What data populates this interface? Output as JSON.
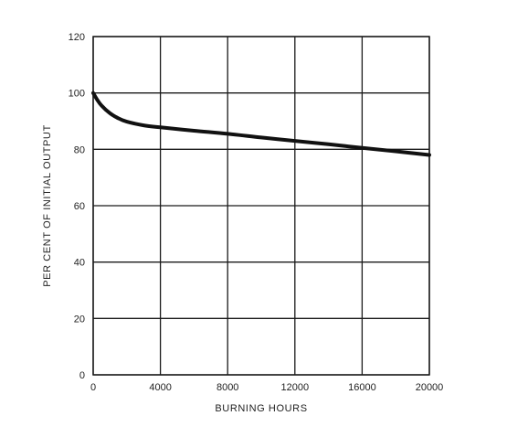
{
  "chart_data": {
    "type": "line",
    "xlabel": "BURNING HOURS",
    "ylabel": "PER CENT OF INITIAL OUTPUT",
    "xlim": [
      0,
      20000
    ],
    "ylim": [
      0,
      120
    ],
    "x_ticks": [
      0,
      4000,
      8000,
      12000,
      16000,
      20000
    ],
    "y_ticks": [
      0,
      20,
      40,
      60,
      80,
      100,
      120
    ],
    "grid": true,
    "series": [
      {
        "x": [
          0,
          250,
          500,
          1000,
          1500,
          2000,
          3000,
          4000,
          6000,
          8000,
          10000,
          12000,
          14000,
          16000,
          18000,
          20000
        ],
        "values": [
          100,
          97.5,
          95.5,
          92.8,
          91.0,
          89.8,
          88.5,
          87.8,
          86.6,
          85.5,
          84.2,
          83.0,
          81.8,
          80.5,
          79.3,
          78.0
        ]
      }
    ]
  }
}
